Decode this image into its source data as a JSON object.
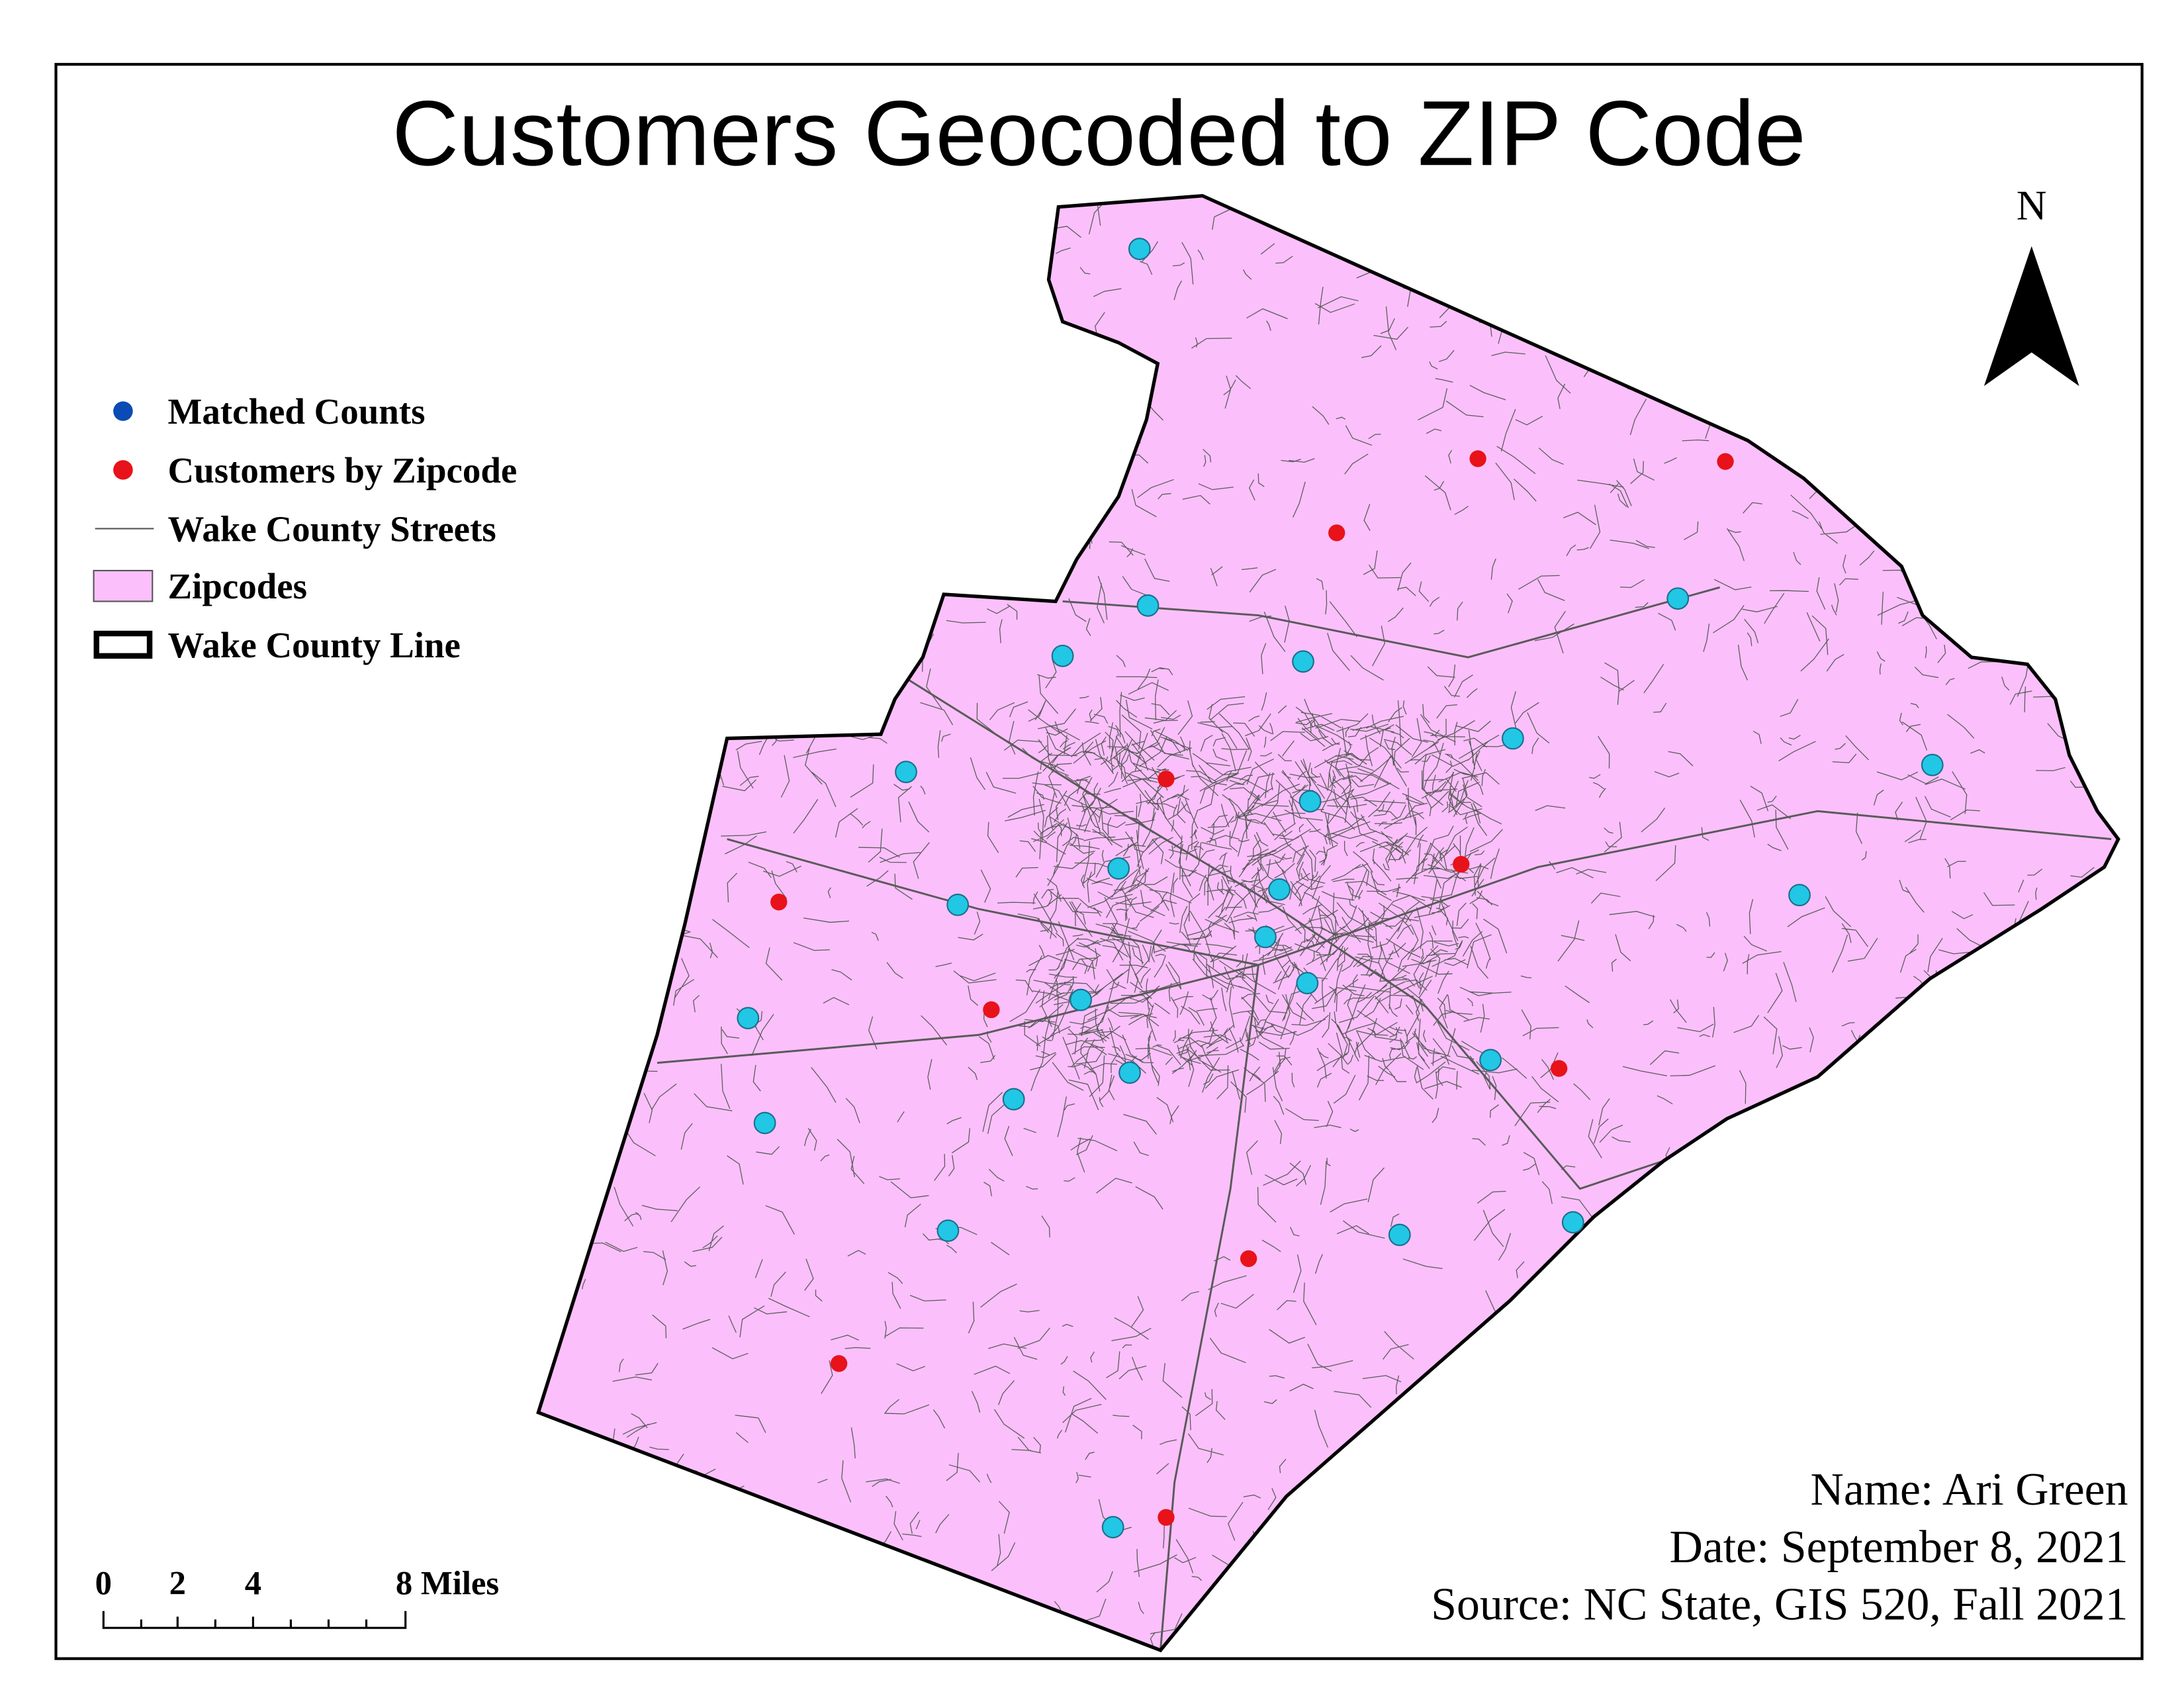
{
  "title": "Customers Geocoded to ZIP Code",
  "legend": {
    "items": [
      "Matched Counts",
      "Customers by Zipcode",
      "Wake County Streets",
      "Zipcodes",
      "Wake County Line"
    ]
  },
  "north_arrow": {
    "label": "N"
  },
  "scale_bar": {
    "labels": [
      "0",
      "2",
      "4",
      "8 Miles"
    ]
  },
  "credits": {
    "name": "Name: Ari Green",
    "date": "Date: September 8, 2021",
    "source": "Source: NC State, GIS 520, Fall 2021"
  }
}
